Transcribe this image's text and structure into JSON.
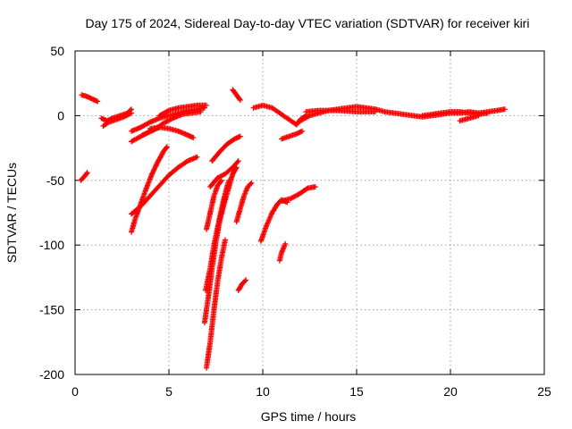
{
  "chart_data": {
    "type": "scatter",
    "title": "Day 175 of 2024, Sidereal Day-to-day VTEC variation (SDTVAR) for receiver kiri",
    "xlabel": "GPS time / hours",
    "ylabel": "SDTVAR / TECUs",
    "xlim": [
      0,
      25
    ],
    "ylim": [
      -200,
      50
    ],
    "xticks": [
      0,
      5,
      10,
      15,
      20,
      25
    ],
    "yticks": [
      -200,
      -150,
      -100,
      -50,
      0,
      50
    ],
    "grid": true,
    "marker": "plus",
    "color": "#ff0000",
    "series": [
      {
        "points": [
          [
            0.35,
            16
          ],
          [
            0.6,
            15
          ],
          [
            0.9,
            13
          ],
          [
            1.2,
            11
          ]
        ]
      },
      {
        "points": [
          [
            0.3,
            -50
          ],
          [
            0.5,
            -47
          ],
          [
            0.65,
            -44
          ]
        ]
      },
      {
        "points": [
          [
            1.5,
            -8
          ],
          [
            1.8,
            -5
          ],
          [
            2.2,
            -3
          ],
          [
            2.6,
            -1
          ],
          [
            3.0,
            2
          ]
        ]
      },
      {
        "points": [
          [
            1.4,
            -2
          ],
          [
            1.7,
            -4
          ],
          [
            2.0,
            -2
          ],
          [
            2.4,
            0
          ],
          [
            2.8,
            2
          ],
          [
            3.0,
            5
          ]
        ]
      },
      {
        "points": [
          [
            3.0,
            -12
          ],
          [
            3.5,
            -9
          ],
          [
            4.0,
            -5
          ],
          [
            4.5,
            -2
          ],
          [
            5.0,
            0
          ],
          [
            5.5,
            2
          ],
          [
            6.0,
            4
          ],
          [
            6.5,
            5
          ],
          [
            6.9,
            6
          ]
        ]
      },
      {
        "points": [
          [
            3.6,
            -15
          ],
          [
            4.2,
            -11
          ],
          [
            4.7,
            -6
          ],
          [
            5.2,
            -2
          ],
          [
            5.7,
            1
          ],
          [
            6.2,
            2
          ],
          [
            6.7,
            3
          ]
        ]
      },
      {
        "points": [
          [
            4.0,
            -10
          ],
          [
            4.5,
            -9
          ],
          [
            5.0,
            -10
          ],
          [
            5.5,
            -12
          ],
          [
            6.0,
            -15
          ],
          [
            6.3,
            -17
          ]
        ]
      },
      {
        "points": [
          [
            4.5,
            0
          ],
          [
            5.0,
            4
          ],
          [
            5.5,
            6
          ],
          [
            6.0,
            7
          ],
          [
            6.5,
            8
          ],
          [
            7.0,
            8
          ]
        ]
      },
      {
        "points": [
          [
            3.0,
            -20
          ],
          [
            3.5,
            -16
          ],
          [
            4.0,
            -12
          ],
          [
            4.5,
            -9
          ]
        ]
      },
      {
        "points": [
          [
            3.0,
            -90
          ],
          [
            3.2,
            -80
          ],
          [
            3.5,
            -68
          ],
          [
            3.8,
            -56
          ],
          [
            4.1,
            -45
          ],
          [
            4.4,
            -36
          ],
          [
            4.7,
            -28
          ],
          [
            4.9,
            -24
          ]
        ]
      },
      {
        "points": [
          [
            3.0,
            -76
          ],
          [
            3.5,
            -70
          ],
          [
            4.0,
            -62
          ],
          [
            4.5,
            -54
          ],
          [
            5.0,
            -46
          ],
          [
            5.5,
            -40
          ],
          [
            6.0,
            -35
          ],
          [
            6.5,
            -32
          ]
        ]
      },
      {
        "points": [
          [
            7.3,
            -35
          ],
          [
            7.7,
            -28
          ],
          [
            8.1,
            -22
          ],
          [
            8.5,
            -18
          ],
          [
            8.8,
            -16
          ]
        ]
      },
      {
        "points": [
          [
            8.4,
            20
          ],
          [
            8.6,
            16
          ],
          [
            8.8,
            12
          ]
        ]
      },
      {
        "points": [
          [
            7.0,
            -195
          ],
          [
            7.2,
            -175
          ],
          [
            7.4,
            -150
          ],
          [
            7.6,
            -128
          ],
          [
            7.8,
            -110
          ],
          [
            8.0,
            -96
          ]
        ]
      },
      {
        "points": [
          [
            6.9,
            -160
          ],
          [
            7.1,
            -140
          ],
          [
            7.3,
            -118
          ],
          [
            7.5,
            -98
          ],
          [
            7.7,
            -82
          ],
          [
            7.9,
            -70
          ],
          [
            8.0,
            -62
          ]
        ]
      },
      {
        "points": [
          [
            6.95,
            -135
          ],
          [
            7.2,
            -118
          ],
          [
            7.4,
            -100
          ],
          [
            7.6,
            -86
          ],
          [
            7.8,
            -72
          ],
          [
            8.0,
            -60
          ],
          [
            8.2,
            -50
          ]
        ]
      },
      {
        "points": [
          [
            7.0,
            -88
          ],
          [
            7.2,
            -75
          ],
          [
            7.4,
            -62
          ],
          [
            7.6,
            -54
          ],
          [
            7.8,
            -50
          ]
        ]
      },
      {
        "points": [
          [
            7.8,
            -75
          ],
          [
            8.0,
            -65
          ],
          [
            8.2,
            -55
          ],
          [
            8.4,
            -45
          ],
          [
            8.6,
            -40
          ]
        ]
      },
      {
        "points": [
          [
            7.2,
            -55
          ],
          [
            7.6,
            -48
          ],
          [
            8.0,
            -45
          ],
          [
            8.4,
            -40
          ],
          [
            8.7,
            -35
          ]
        ]
      },
      {
        "points": [
          [
            8.6,
            -82
          ],
          [
            8.8,
            -72
          ],
          [
            9.0,
            -62
          ],
          [
            9.2,
            -55
          ],
          [
            9.4,
            -52
          ]
        ]
      },
      {
        "points": [
          [
            8.7,
            -135
          ],
          [
            8.9,
            -130
          ],
          [
            9.1,
            -127
          ]
        ]
      },
      {
        "points": [
          [
            9.9,
            -97
          ],
          [
            10.2,
            -85
          ],
          [
            10.5,
            -75
          ],
          [
            10.8,
            -68
          ],
          [
            11.0,
            -65
          ],
          [
            11.3,
            -67
          ]
        ]
      },
      {
        "points": [
          [
            11.0,
            -66
          ],
          [
            11.5,
            -64
          ],
          [
            12.0,
            -60
          ],
          [
            12.4,
            -56
          ],
          [
            12.8,
            -55
          ]
        ]
      },
      {
        "points": [
          [
            10.9,
            -112
          ],
          [
            11.0,
            -106
          ],
          [
            11.2,
            -99
          ]
        ]
      },
      {
        "points": [
          [
            11.0,
            -18
          ],
          [
            11.4,
            -16
          ],
          [
            11.8,
            -14
          ],
          [
            12.1,
            -12
          ]
        ]
      },
      {
        "points": [
          [
            9.5,
            6
          ],
          [
            10.0,
            8
          ],
          [
            10.5,
            6
          ],
          [
            11.0,
            1
          ],
          [
            11.5,
            -4
          ],
          [
            11.8,
            -7
          ],
          [
            12.0,
            -3
          ],
          [
            12.3,
            0
          ]
        ]
      },
      {
        "points": [
          [
            12.0,
            -4
          ],
          [
            12.5,
            0
          ],
          [
            13.0,
            2
          ],
          [
            13.5,
            4
          ],
          [
            14.0,
            5
          ],
          [
            14.5,
            6
          ],
          [
            15.0,
            7
          ],
          [
            15.5,
            6
          ],
          [
            16.0,
            5
          ]
        ]
      },
      {
        "points": [
          [
            12.3,
            3
          ],
          [
            13.0,
            4
          ],
          [
            14.0,
            4
          ],
          [
            15.0,
            3
          ],
          [
            16.0,
            3
          ]
        ]
      },
      {
        "points": [
          [
            16.0,
            5
          ],
          [
            16.5,
            3
          ],
          [
            17.0,
            2
          ],
          [
            17.5,
            1
          ],
          [
            18.0,
            0
          ],
          [
            18.5,
            -1
          ],
          [
            19.0,
            0
          ],
          [
            19.5,
            1
          ],
          [
            20.0,
            2
          ],
          [
            20.5,
            2
          ],
          [
            21.0,
            3
          ],
          [
            21.5,
            2
          ],
          [
            22.0,
            3
          ],
          [
            22.5,
            4
          ],
          [
            22.9,
            5
          ]
        ]
      },
      {
        "points": [
          [
            18.5,
            0
          ],
          [
            19.0,
            1
          ],
          [
            19.5,
            2
          ],
          [
            20.0,
            3
          ],
          [
            20.5,
            3
          ],
          [
            21.0,
            2
          ],
          [
            21.5,
            1
          ],
          [
            22.0,
            2
          ]
        ]
      },
      {
        "points": [
          [
            20.5,
            -4
          ],
          [
            21.0,
            -2
          ],
          [
            21.5,
            0
          ]
        ]
      }
    ]
  }
}
